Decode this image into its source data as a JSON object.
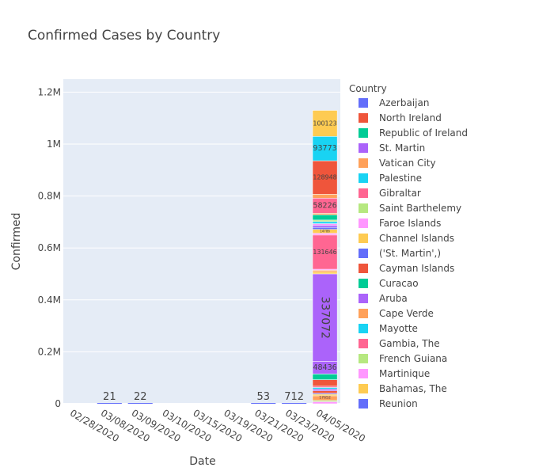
{
  "chart_data": {
    "type": "bar",
    "stacked": true,
    "title": "Confirmed Cases by Country",
    "xlabel": "Date",
    "ylabel": "Confirmed",
    "categories": [
      "02/28/2020",
      "03/08/2020",
      "03/09/2020",
      "03/10/2020",
      "03/15/2020",
      "03/19/2020",
      "03/21/2020",
      "03/23/2020",
      "04/05/2020"
    ],
    "ylim": [
      0,
      1250000
    ],
    "yticks": [
      {
        "value": 0,
        "label": "0"
      },
      {
        "value": 200000,
        "label": "0.2M"
      },
      {
        "value": 400000,
        "label": "0.4M"
      },
      {
        "value": 600000,
        "label": "0.6M"
      },
      {
        "value": 800000,
        "label": "0.8M"
      },
      {
        "value": 1000000,
        "label": "1M"
      },
      {
        "value": 1200000,
        "label": "1.2M"
      }
    ],
    "grid": true,
    "legend_title": "Country",
    "legend_position": "right",
    "legend_entries": [
      {
        "name": "  Azerbaijan",
        "color": "#636efa"
      },
      {
        "name": "North Ireland",
        "color": "#EF553B"
      },
      {
        "name": "Republic of Ireland",
        "color": "#00cc96"
      },
      {
        "name": "St. Martin",
        "color": "#ab63fa"
      },
      {
        "name": "Vatican City",
        "color": "#FFA15A"
      },
      {
        "name": "Palestine",
        "color": "#19d3f3"
      },
      {
        "name": "Gibraltar",
        "color": "#FF6692"
      },
      {
        "name": "Saint Barthelemy",
        "color": "#B6E880"
      },
      {
        "name": "Faroe Islands",
        "color": "#FF97FF"
      },
      {
        "name": "Channel Islands",
        "color": "#FECB52"
      },
      {
        "name": "('St. Martin',)",
        "color": "#636efa"
      },
      {
        "name": "Cayman Islands",
        "color": "#EF553B"
      },
      {
        "name": "Curacao",
        "color": "#00cc96"
      },
      {
        "name": "Aruba",
        "color": "#ab63fa"
      },
      {
        "name": "Cape Verde",
        "color": "#FFA15A"
      },
      {
        "name": "Mayotte",
        "color": "#19d3f3"
      },
      {
        "name": "Gambia, The",
        "color": "#FF6692"
      },
      {
        "name": "French Guiana",
        "color": "#B6E880"
      },
      {
        "name": "Martinique",
        "color": "#FF97FF"
      },
      {
        "name": "Bahamas, The",
        "color": "#FECB52"
      },
      {
        "name": "Reunion",
        "color": "#636efa"
      }
    ],
    "small_bar_labels": [
      {
        "category": "03/08/2020",
        "value": 21,
        "label": "21"
      },
      {
        "category": "03/09/2020",
        "value": 22,
        "label": "22"
      },
      {
        "category": "03/21/2020",
        "value": 53,
        "label": "53"
      },
      {
        "category": "03/23/2020",
        "value": 712,
        "label": "712"
      }
    ],
    "stack_category": "04/05/2020",
    "stack_segments": [
      {
        "value": 8000,
        "color": "#FF97FF"
      },
      {
        "value": 5000,
        "color": "#B6E880"
      },
      {
        "value": 17652,
        "color": "#FFA15A",
        "label": "17652"
      },
      {
        "value": 6000,
        "color": "#FECB52"
      },
      {
        "value": 4000,
        "color": "#636efa"
      },
      {
        "value": 9000,
        "color": "#EF553B"
      },
      {
        "value": 7000,
        "color": "#ab63fa"
      },
      {
        "value": 6000,
        "color": "#19d3f3"
      },
      {
        "value": 5000,
        "color": "#FF6692"
      },
      {
        "value": 25000,
        "color": "#EF553B"
      },
      {
        "value": 22000,
        "color": "#00cc96"
      },
      {
        "value": 48436,
        "color": "#ab63fa",
        "label": "48436"
      },
      {
        "value": 337072,
        "color": "#ab63fa",
        "label": "337072"
      },
      {
        "value": 8000,
        "color": "#FECB52"
      },
      {
        "value": 6000,
        "color": "#FFA15A"
      },
      {
        "value": 4000,
        "color": "#FF97FF"
      },
      {
        "value": 131646,
        "color": "#FF6692",
        "label": "131646"
      },
      {
        "value": 7000,
        "color": "#FF97FF"
      },
      {
        "value": 14786,
        "color": "#FECB52",
        "label": "14786"
      },
      {
        "value": 8000,
        "color": "#636efa"
      },
      {
        "value": 8000,
        "color": "#ab63fa"
      },
      {
        "value": 6000,
        "color": "#FF97FF"
      },
      {
        "value": 8000,
        "color": "#19d3f3"
      },
      {
        "value": 6000,
        "color": "#B6E880"
      },
      {
        "value": 20000,
        "color": "#00cc96"
      },
      {
        "value": 6000,
        "color": "#FFA15A"
      },
      {
        "value": 58226,
        "color": "#FF6692",
        "label": "58226"
      },
      {
        "value": 15000,
        "color": "#FFA15A"
      },
      {
        "value": 128948,
        "color": "#EF553B",
        "label": "128948"
      },
      {
        "value": 93773,
        "color": "#19d3f3",
        "label": "93773"
      },
      {
        "value": 100123,
        "color": "#FECB52",
        "label": "100123"
      }
    ]
  }
}
